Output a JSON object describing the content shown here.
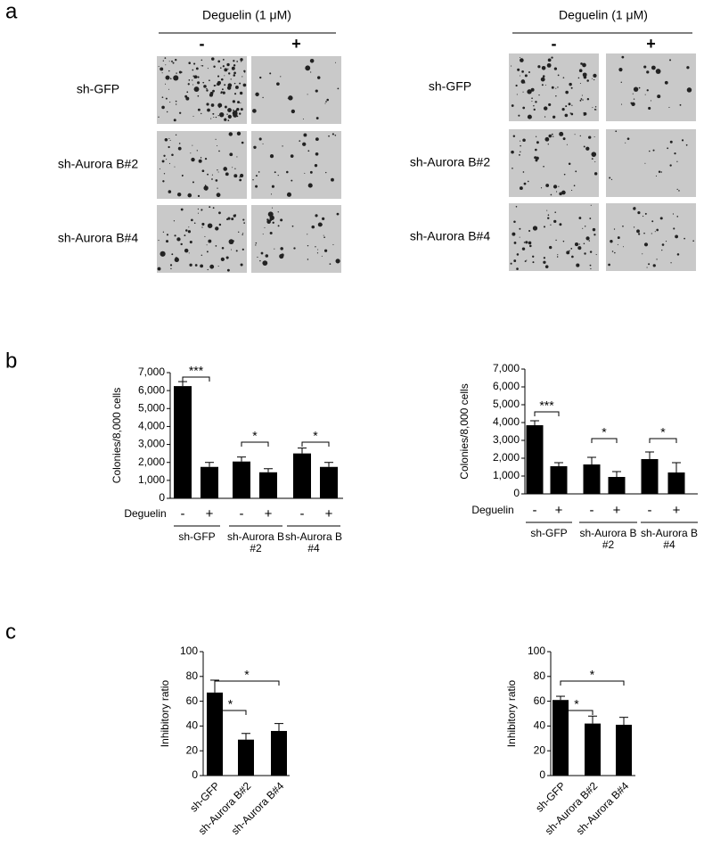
{
  "panel_labels": [
    "a",
    "b",
    "c"
  ],
  "panel_a": [
    {
      "header": "Deguelin (1 μM)",
      "columns": [
        "-",
        "+"
      ],
      "rows": [
        "sh-GFP",
        "sh-Aurora B#2",
        "sh-Aurora B#4"
      ]
    },
    {
      "header": "Deguelin (1 μM)",
      "columns": [
        "-",
        "+"
      ],
      "rows": [
        "sh-GFP",
        "sh-Aurora B#2",
        "sh-Aurora B#4"
      ]
    }
  ],
  "chart_data": [
    {
      "type": "bar",
      "y_label": "Colonies/8,000 cells",
      "row_label": "Deguelin",
      "categories": [
        "-",
        "+",
        "-",
        "+",
        "-",
        "+"
      ],
      "groups": [
        [
          "sh-GFP"
        ],
        [
          "sh-Aurora B",
          "#2"
        ],
        [
          "sh-Aurora B",
          "#4"
        ]
      ],
      "series": [
        {
          "color": "#000000",
          "values": [
            6250,
            1750,
            2050,
            1450,
            2500,
            1750
          ],
          "errors": [
            250,
            250,
            250,
            200,
            300,
            250
          ]
        }
      ],
      "ylim": [
        0,
        7000
      ],
      "yticks": [
        0,
        {
          "value": 1000,
          "label": "1,000"
        },
        {
          "value": 2000,
          "label": "2,000"
        },
        {
          "value": 3000,
          "label": "3,000"
        },
        {
          "value": 4000,
          "label": "4,000"
        },
        {
          "value": 5000,
          "label": "5,000"
        },
        {
          "value": 6000,
          "label": "6,000"
        },
        {
          "value": 7000,
          "label": "7,000"
        }
      ],
      "significance": [
        {
          "label": "***",
          "between": [
            0,
            1
          ]
        },
        {
          "label": "*",
          "between": [
            2,
            3
          ]
        },
        {
          "label": "*",
          "between": [
            4,
            5
          ]
        }
      ]
    },
    {
      "type": "bar",
      "y_label": "Colonies/8,000 cells",
      "row_label": "Deguelin",
      "categories": [
        "-",
        "+",
        "-",
        "+",
        "-",
        "+"
      ],
      "groups": [
        [
          "sh-GFP"
        ],
        [
          "sh-Aurora B",
          "#2"
        ],
        [
          "sh-Aurora B",
          "#4"
        ]
      ],
      "series": [
        {
          "color": "#000000",
          "values": [
            3850,
            1550,
            1650,
            950,
            1950,
            1200
          ],
          "errors": [
            250,
            200,
            400,
            300,
            400,
            550
          ]
        }
      ],
      "ylim": [
        0,
        7000
      ],
      "yticks": [
        0,
        {
          "value": 1000,
          "label": "1,000"
        },
        {
          "value": 2000,
          "label": "2,000"
        },
        {
          "value": 3000,
          "label": "3,000"
        },
        {
          "value": 4000,
          "label": "4,000"
        },
        {
          "value": 5000,
          "label": "5,000"
        },
        {
          "value": 6000,
          "label": "6,000"
        },
        {
          "value": 7000,
          "label": "7,000"
        }
      ],
      "significance": [
        {
          "label": "***",
          "between": [
            0,
            1
          ]
        },
        {
          "label": "*",
          "between": [
            2,
            3
          ]
        },
        {
          "label": "*",
          "between": [
            4,
            5
          ]
        }
      ]
    },
    {
      "type": "bar",
      "y_label": "Inhibitory ratio",
      "categories": [
        "sh-GFP",
        "sh-Aurora B#2",
        "sh-Aurora B#4"
      ],
      "series": [
        {
          "color": "#000000",
          "values": [
            67,
            29,
            36
          ],
          "errors": [
            10,
            5,
            6
          ]
        }
      ],
      "ylim": [
        0,
        100
      ],
      "yticks": [
        0,
        20,
        40,
        60,
        80,
        100
      ],
      "significance": [
        {
          "label": "*",
          "between": [
            0,
            1
          ]
        },
        {
          "label": "*",
          "between": [
            0,
            2
          ]
        }
      ]
    },
    {
      "type": "bar",
      "y_label": "Inhibitory ratio",
      "categories": [
        "sh-GFP",
        "sh-Aurora B#2",
        "sh-Aurora B#4"
      ],
      "series": [
        {
          "color": "#000000",
          "values": [
            61,
            42,
            41
          ],
          "errors": [
            3,
            6,
            6
          ]
        }
      ],
      "ylim": [
        0,
        100
      ],
      "yticks": [
        0,
        20,
        40,
        60,
        80,
        100
      ],
      "significance": [
        {
          "label": "*",
          "between": [
            0,
            1
          ]
        },
        {
          "label": "*",
          "between": [
            0,
            2
          ]
        }
      ]
    }
  ]
}
